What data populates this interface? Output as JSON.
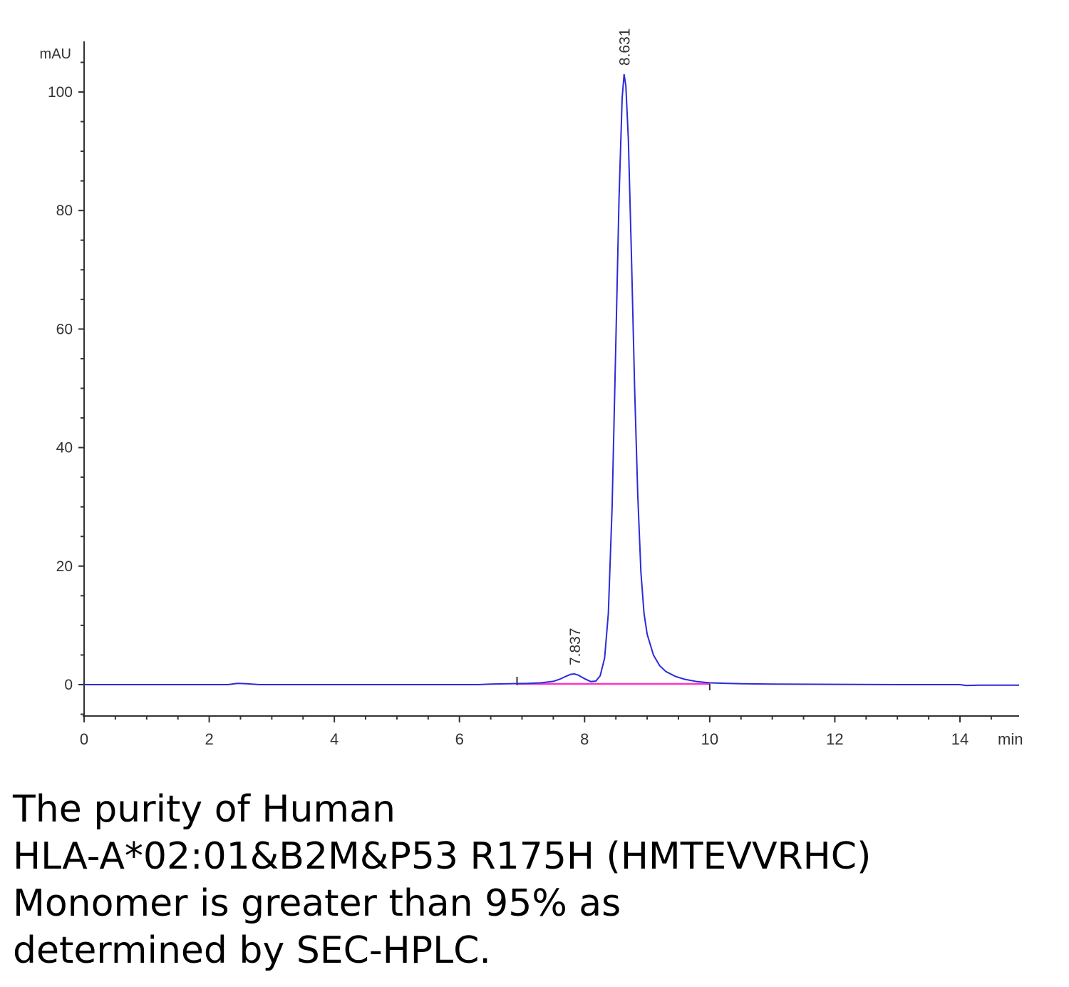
{
  "chart_data": {
    "type": "line",
    "ylabel": "mAU",
    "xlabel": "min",
    "xlim": [
      0,
      15
    ],
    "ylim": [
      -5,
      108
    ],
    "x_ticks": [
      "0",
      "2",
      "4",
      "6",
      "8",
      "10",
      "12",
      "14"
    ],
    "y_ticks": [
      "0",
      "20",
      "40",
      "60",
      "80",
      "100"
    ],
    "colors": {
      "trace": "#2b2bd9",
      "baseline": "#ff33cc",
      "axis": "#333333"
    },
    "peaks": [
      {
        "label": "7.837",
        "rt": 7.837,
        "height": 1.8
      },
      {
        "label": "8.631",
        "rt": 8.631,
        "height": 103.0
      }
    ],
    "integration_baseline": {
      "start": 6.92,
      "end": 10.0
    },
    "series": [
      {
        "x": [
          0,
          2.3,
          2.45,
          2.6,
          2.8,
          6.3,
          6.5,
          6.8,
          7.1,
          7.3,
          7.5,
          7.6,
          7.7,
          7.78,
          7.837,
          7.9,
          8.0,
          8.1,
          8.18,
          8.25,
          8.32,
          8.38,
          8.44,
          8.5,
          8.55,
          8.6,
          8.631,
          8.66,
          8.7,
          8.75,
          8.8,
          8.85,
          8.9,
          8.95,
          9.0,
          9.1,
          9.2,
          9.3,
          9.45,
          9.6,
          9.8,
          10.0,
          10.5,
          11.0,
          12.0,
          13.0,
          14.0,
          14.1,
          14.3,
          15.0
        ],
        "y": [
          0,
          0,
          0.2,
          0.15,
          0,
          0,
          0.1,
          0.15,
          0.2,
          0.3,
          0.55,
          0.9,
          1.4,
          1.75,
          1.8,
          1.6,
          1.0,
          0.5,
          0.6,
          1.5,
          4.5,
          12,
          30,
          58,
          82,
          99,
          103,
          101,
          92,
          72,
          50,
          32,
          19,
          12,
          8.5,
          5.0,
          3.2,
          2.2,
          1.4,
          0.9,
          0.5,
          0.3,
          0.15,
          0.1,
          0.05,
          0,
          0,
          -0.15,
          -0.1,
          -0.1
        ]
      }
    ]
  },
  "caption": {
    "lines": [
      "The purity of Human",
      "HLA-A*02:01&B2M&P53 R175H (HMTEVVRHC)",
      "Monomer is greater than 95% as",
      "determined by SEC-HPLC."
    ]
  }
}
